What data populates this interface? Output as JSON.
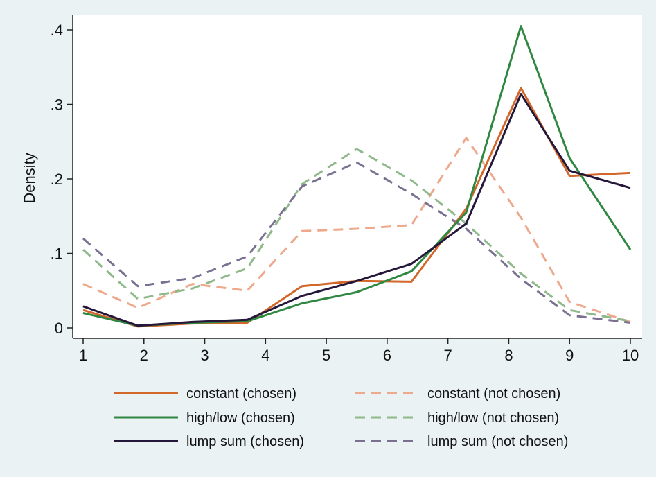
{
  "chart_data": {
    "type": "line",
    "title": "",
    "xlabel": "",
    "ylabel": "Density",
    "xlim": [
      1,
      10
    ],
    "ylim": [
      0,
      0.4
    ],
    "x_ticks": [
      "1",
      "2",
      "3",
      "4",
      "5",
      "6",
      "7",
      "8",
      "9",
      "10"
    ],
    "y_ticks": [
      {
        "value": 0,
        "label": "0"
      },
      {
        "value": 0.1,
        "label": ".1"
      },
      {
        "value": 0.2,
        "label": ".2"
      },
      {
        "value": 0.3,
        "label": ".3"
      },
      {
        "value": 0.4,
        "label": ".4"
      }
    ],
    "grid": false,
    "legend_position": "bottom",
    "series": [
      {
        "name": "constant (chosen)",
        "color": "#d2672a",
        "dashed": false,
        "points": [
          [
            1,
            0.024
          ],
          [
            1.9,
            0.002
          ],
          [
            2.8,
            0.006
          ],
          [
            3.7,
            0.007
          ],
          [
            4.6,
            0.056
          ],
          [
            5.5,
            0.063
          ],
          [
            6.4,
            0.062
          ],
          [
            7.3,
            0.16
          ],
          [
            8.2,
            0.322
          ],
          [
            9,
            0.204
          ],
          [
            10,
            0.208
          ]
        ]
      },
      {
        "name": "high/low (chosen)",
        "color": "#2f8741",
        "dashed": false,
        "points": [
          [
            1,
            0.02
          ],
          [
            1.9,
            0.003
          ],
          [
            2.8,
            0.007
          ],
          [
            3.7,
            0.009
          ],
          [
            4.6,
            0.033
          ],
          [
            5.5,
            0.048
          ],
          [
            6.4,
            0.076
          ],
          [
            7.3,
            0.155
          ],
          [
            8.2,
            0.405
          ],
          [
            9,
            0.228
          ],
          [
            10,
            0.105
          ]
        ]
      },
      {
        "name": "lump sum (chosen)",
        "color": "#24173a",
        "dashed": false,
        "points": [
          [
            1,
            0.029
          ],
          [
            1.9,
            0.003
          ],
          [
            2.8,
            0.008
          ],
          [
            3.7,
            0.011
          ],
          [
            4.6,
            0.043
          ],
          [
            5.5,
            0.063
          ],
          [
            6.4,
            0.086
          ],
          [
            7.3,
            0.14
          ],
          [
            8.2,
            0.314
          ],
          [
            9,
            0.211
          ],
          [
            10,
            0.188
          ]
        ]
      },
      {
        "name": "constant (not chosen)",
        "color": "#eda98b",
        "dashed": true,
        "points": [
          [
            1,
            0.059
          ],
          [
            1.9,
            0.027
          ],
          [
            2.8,
            0.059
          ],
          [
            3.7,
            0.05
          ],
          [
            4.6,
            0.13
          ],
          [
            5.5,
            0.133
          ],
          [
            6.4,
            0.138
          ],
          [
            7.3,
            0.255
          ],
          [
            8.2,
            0.148
          ],
          [
            9,
            0.035
          ],
          [
            10,
            0.008
          ]
        ]
      },
      {
        "name": "high/low (not chosen)",
        "color": "#8fb98a",
        "dashed": true,
        "points": [
          [
            1,
            0.105
          ],
          [
            1.9,
            0.039
          ],
          [
            2.8,
            0.053
          ],
          [
            3.7,
            0.08
          ],
          [
            4.6,
            0.193
          ],
          [
            5.5,
            0.24
          ],
          [
            6.4,
            0.198
          ],
          [
            7.3,
            0.14
          ],
          [
            8.2,
            0.073
          ],
          [
            9,
            0.024
          ],
          [
            10,
            0.009
          ]
        ]
      },
      {
        "name": "lump sum (not chosen)",
        "color": "#7a7192",
        "dashed": true,
        "points": [
          [
            1,
            0.12
          ],
          [
            1.9,
            0.056
          ],
          [
            2.8,
            0.067
          ],
          [
            3.7,
            0.096
          ],
          [
            4.6,
            0.19
          ],
          [
            5.5,
            0.222
          ],
          [
            6.4,
            0.18
          ],
          [
            7.3,
            0.133
          ],
          [
            8.2,
            0.066
          ],
          [
            9,
            0.017
          ],
          [
            10,
            0.007
          ]
        ]
      }
    ],
    "legend_order": [
      0,
      3,
      1,
      4,
      2,
      5
    ]
  }
}
